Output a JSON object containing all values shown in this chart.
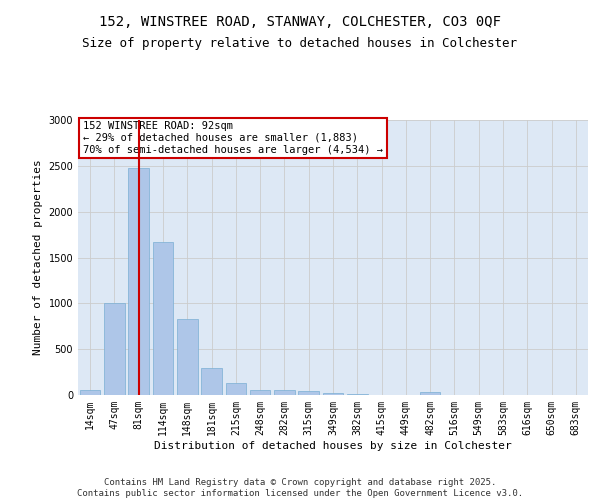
{
  "title_line1": "152, WINSTREE ROAD, STANWAY, COLCHESTER, CO3 0QF",
  "title_line2": "Size of property relative to detached houses in Colchester",
  "xlabel": "Distribution of detached houses by size in Colchester",
  "ylabel": "Number of detached properties",
  "categories": [
    "14sqm",
    "47sqm",
    "81sqm",
    "114sqm",
    "148sqm",
    "181sqm",
    "215sqm",
    "248sqm",
    "282sqm",
    "315sqm",
    "349sqm",
    "382sqm",
    "415sqm",
    "449sqm",
    "482sqm",
    "516sqm",
    "549sqm",
    "583sqm",
    "616sqm",
    "650sqm",
    "683sqm"
  ],
  "values": [
    50,
    1000,
    2480,
    1670,
    830,
    290,
    135,
    60,
    55,
    40,
    25,
    10,
    0,
    0,
    30,
    0,
    0,
    0,
    0,
    0,
    0
  ],
  "bar_color": "#aec6e8",
  "bar_edge_color": "#7aafd4",
  "vline_x_index": 2,
  "vline_color": "#cc0000",
  "annotation_box_text": "152 WINSTREE ROAD: 92sqm\n← 29% of detached houses are smaller (1,883)\n70% of semi-detached houses are larger (4,534) →",
  "annotation_box_color": "#cc0000",
  "annotation_box_bg": "#ffffff",
  "ylim": [
    0,
    3000
  ],
  "yticks": [
    0,
    500,
    1000,
    1500,
    2000,
    2500,
    3000
  ],
  "grid_color": "#cccccc",
  "bg_color": "#dde8f5",
  "footer_line1": "Contains HM Land Registry data © Crown copyright and database right 2025.",
  "footer_line2": "Contains public sector information licensed under the Open Government Licence v3.0.",
  "title_fontsize": 10,
  "subtitle_fontsize": 9,
  "axis_label_fontsize": 8,
  "tick_fontsize": 7,
  "footer_fontsize": 6.5,
  "annotation_fontsize": 7.5
}
